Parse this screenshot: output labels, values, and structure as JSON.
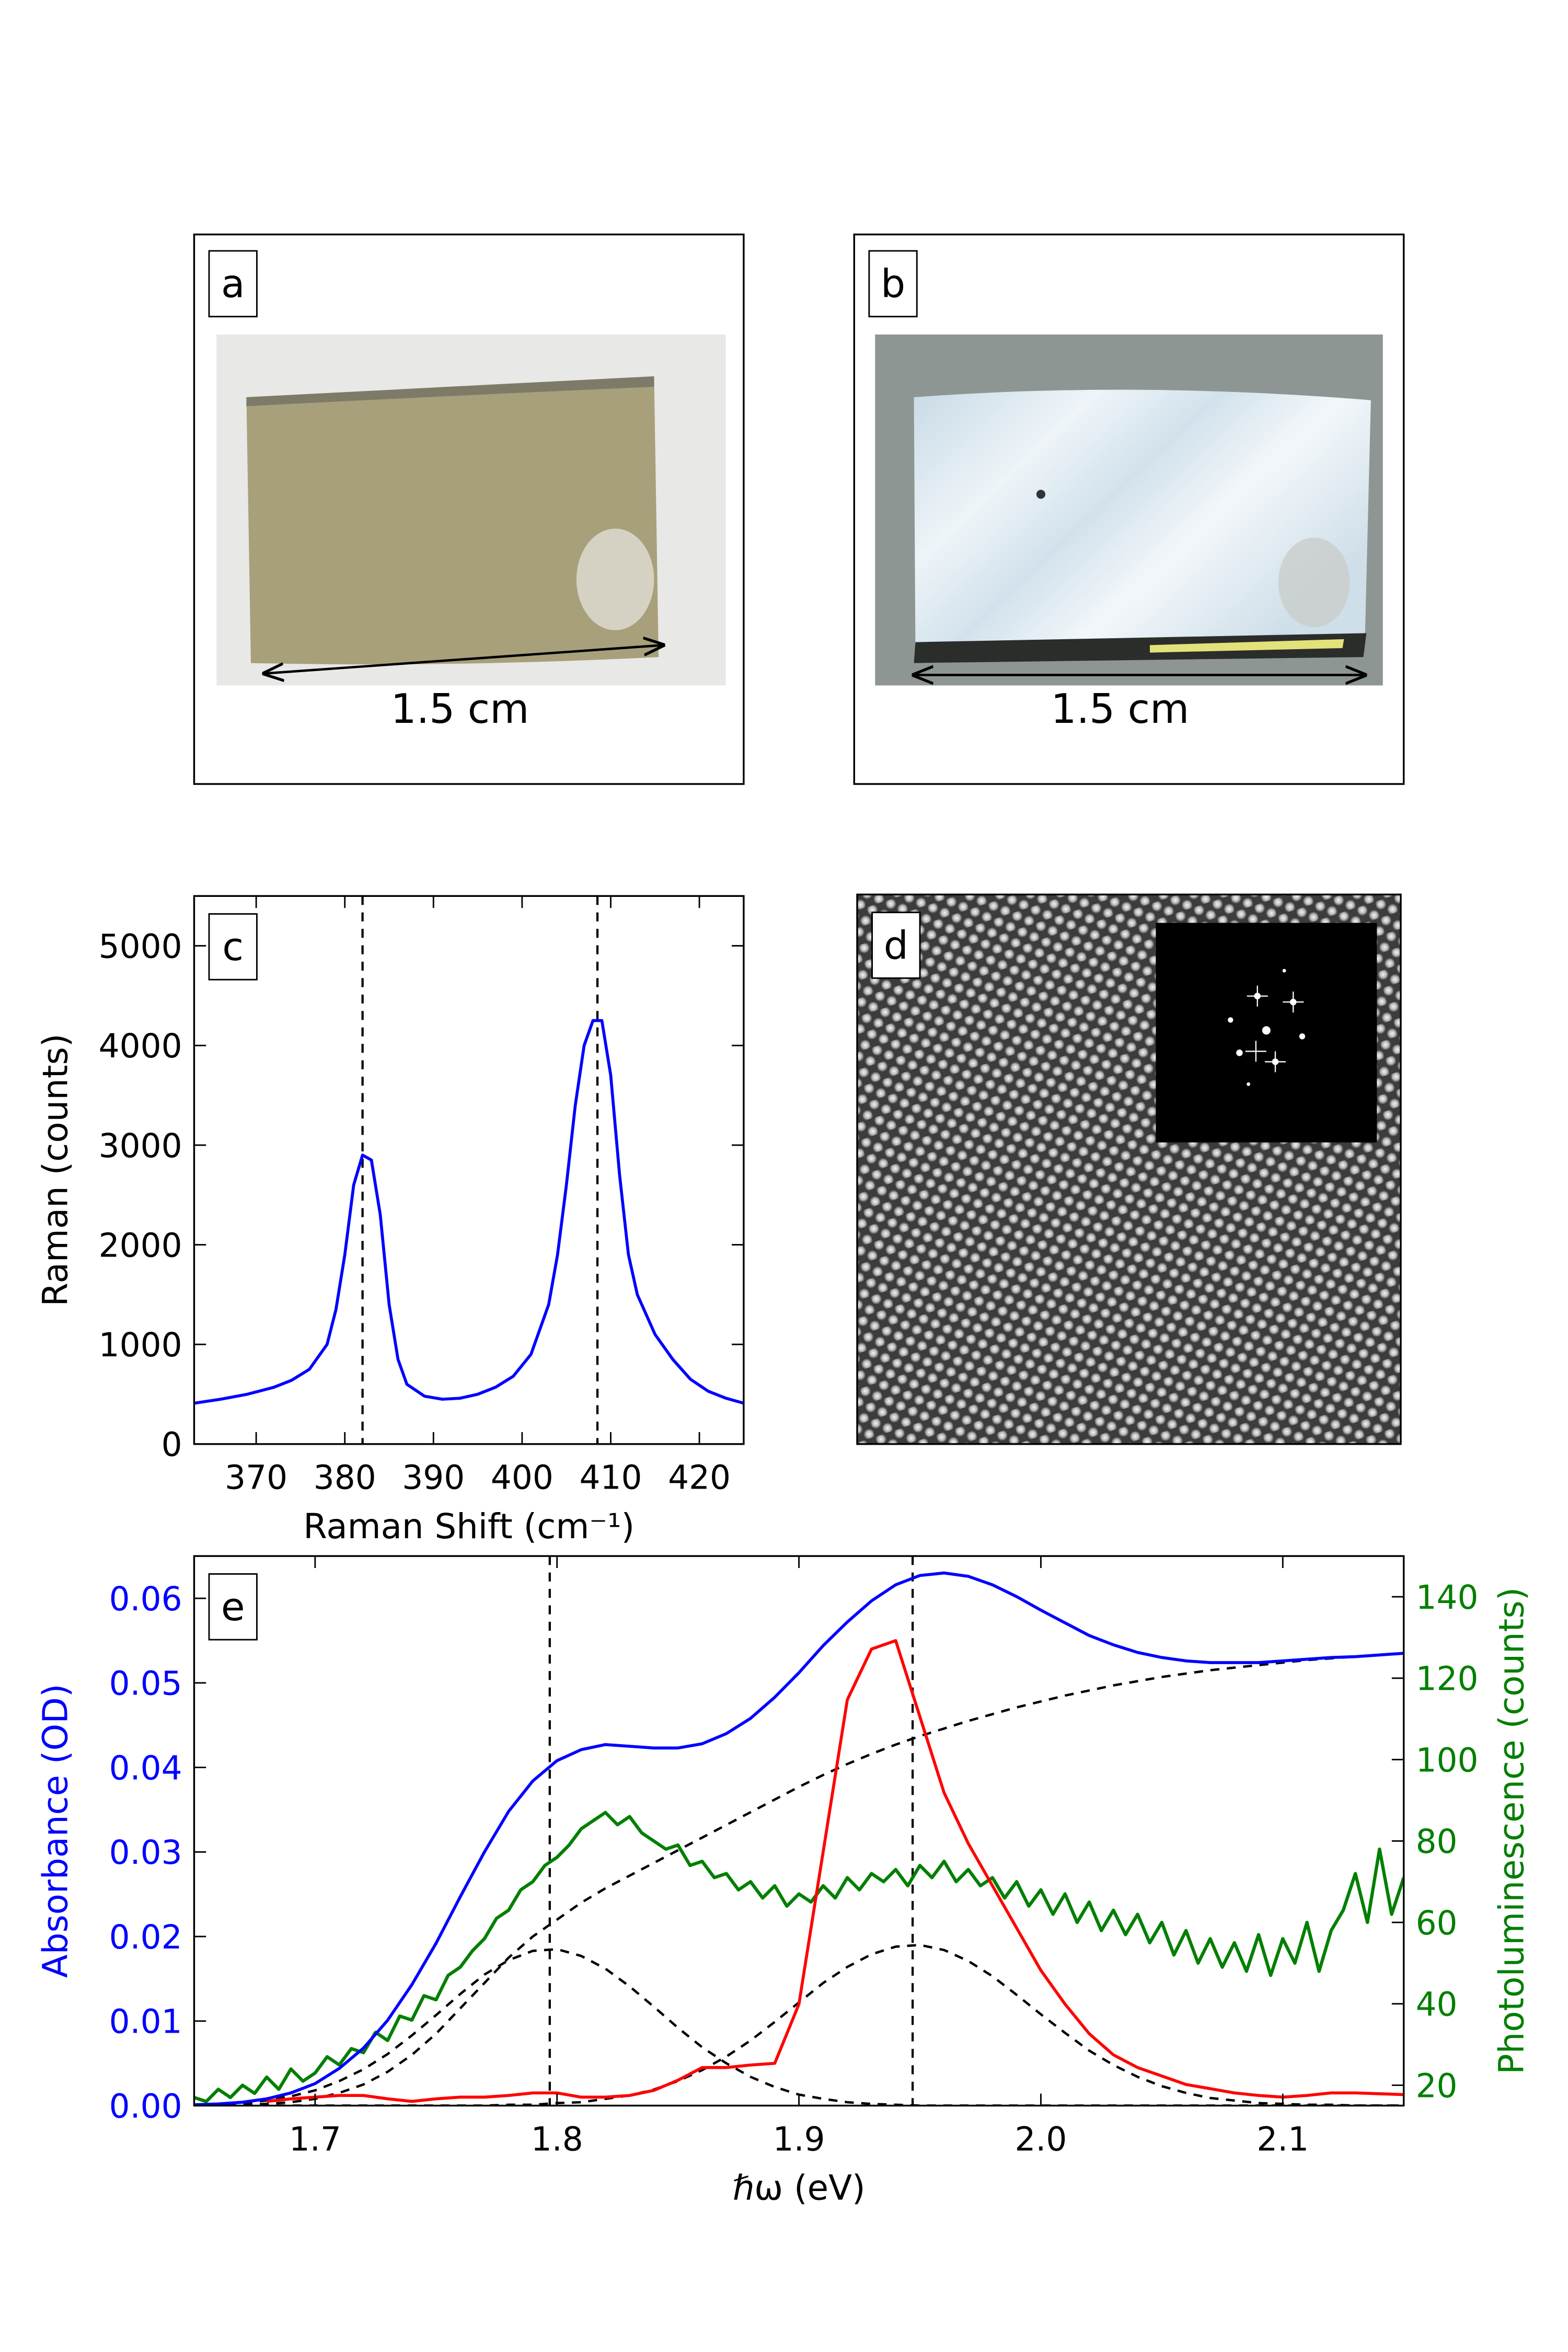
{
  "panels": {
    "a": {
      "label": "a",
      "caption": "1.5 cm"
    },
    "b": {
      "label": "b",
      "caption": "1.5 cm"
    },
    "d": {
      "label": "d"
    }
  },
  "chart_data": [
    {
      "type": "line",
      "panel_label": "c",
      "xlabel": "Raman Shift (cm⁻¹)",
      "ylabel": "Raman (counts)",
      "xlim": [
        363,
        425
      ],
      "ylim": [
        0,
        5500
      ],
      "xticks": [
        370,
        380,
        390,
        400,
        410,
        420
      ],
      "yticks": [
        0,
        1000,
        2000,
        3000,
        4000,
        5000
      ],
      "vlines": [
        382,
        408.5
      ],
      "x": [
        363,
        366,
        369,
        372,
        374,
        376,
        378,
        379,
        380,
        381,
        382,
        383,
        384,
        385,
        386,
        387,
        389,
        391,
        393,
        395,
        397,
        399,
        401,
        403,
        404,
        405,
        406,
        407,
        408,
        409,
        410,
        411,
        412,
        413,
        415,
        417,
        419,
        421,
        423,
        425
      ],
      "series": [
        {
          "color": "#0000ff",
          "values": [
            410,
            450,
            500,
            570,
            640,
            750,
            1000,
            1350,
            1900,
            2600,
            2900,
            2850,
            2300,
            1400,
            850,
            600,
            480,
            450,
            460,
            500,
            570,
            680,
            900,
            1400,
            1900,
            2600,
            3400,
            4000,
            4250,
            4250,
            3700,
            2700,
            1900,
            1500,
            1100,
            850,
            650,
            530,
            460,
            410
          ]
        }
      ]
    },
    {
      "type": "line",
      "panel_label": "e",
      "xlabel": "ℏω  (eV)",
      "ylabel": "Absorbance (OD)",
      "y2label": "Photoluminescence (counts)",
      "y_color": "#0000ff",
      "y2_color": "#007f00",
      "xlim": [
        1.65,
        2.15
      ],
      "ylim": [
        0,
        0.065
      ],
      "y2lim": [
        15,
        150
      ],
      "xticks": [
        1.7,
        1.8,
        1.9,
        {
          "value": 2,
          "label": "2.0"
        },
        2.1
      ],
      "yticks": [
        {
          "value": 0,
          "label": "0.00"
        },
        {
          "value": 0.01,
          "label": "0.01"
        },
        {
          "value": 0.02,
          "label": "0.02"
        },
        {
          "value": 0.03,
          "label": "0.03"
        },
        {
          "value": 0.04,
          "label": "0.04"
        },
        {
          "value": 0.05,
          "label": "0.05"
        },
        {
          "value": 0.06,
          "label": "0.06"
        }
      ],
      "y2ticks": [
        20,
        40,
        60,
        80,
        100,
        120,
        140
      ],
      "vlines": [
        1.797,
        1.947
      ],
      "x": [
        1.65,
        1.66,
        1.67,
        1.68,
        1.69,
        1.7,
        1.71,
        1.72,
        1.73,
        1.74,
        1.75,
        1.76,
        1.77,
        1.78,
        1.79,
        1.8,
        1.81,
        1.82,
        1.83,
        1.84,
        1.85,
        1.86,
        1.87,
        1.88,
        1.89,
        1.9,
        1.91,
        1.92,
        1.93,
        1.94,
        1.95,
        1.96,
        1.97,
        1.98,
        1.99,
        2.0,
        2.01,
        2.02,
        2.03,
        2.04,
        2.05,
        2.06,
        2.07,
        2.08,
        2.09,
        2.1,
        2.11,
        2.12,
        2.13,
        2.14,
        2.15
      ],
      "series": [
        {
          "color": "#007f00",
          "axis": "y2",
          "width": 2.2,
          "x": [
            1.65,
            1.655,
            1.66,
            1.665,
            1.67,
            1.675,
            1.68,
            1.685,
            1.69,
            1.695,
            1.7,
            1.705,
            1.71,
            1.715,
            1.72,
            1.725,
            1.73,
            1.735,
            1.74,
            1.745,
            1.75,
            1.755,
            1.76,
            1.765,
            1.77,
            1.775,
            1.78,
            1.785,
            1.79,
            1.795,
            1.8,
            1.805,
            1.81,
            1.815,
            1.82,
            1.825,
            1.83,
            1.835,
            1.84,
            1.845,
            1.85,
            1.855,
            1.86,
            1.865,
            1.87,
            1.875,
            1.88,
            1.885,
            1.89,
            1.895,
            1.9,
            1.905,
            1.91,
            1.915,
            1.92,
            1.925,
            1.93,
            1.935,
            1.94,
            1.945,
            1.95,
            1.955,
            1.96,
            1.965,
            1.97,
            1.975,
            1.98,
            1.985,
            1.99,
            1.995,
            2.0,
            2.005,
            2.01,
            2.015,
            2.02,
            2.025,
            2.03,
            2.035,
            2.04,
            2.045,
            2.05,
            2.055,
            2.06,
            2.065,
            2.07,
            2.075,
            2.08,
            2.085,
            2.09,
            2.095,
            2.1,
            2.105,
            2.11,
            2.115,
            2.12,
            2.125,
            2.13,
            2.135,
            2.14,
            2.145,
            2.15
          ],
          "values": [
            17,
            16,
            19,
            17,
            20,
            18,
            22,
            19,
            24,
            21,
            23,
            27,
            25,
            29,
            28,
            33,
            31,
            37,
            36,
            42,
            41,
            47,
            49,
            53,
            56,
            61,
            63,
            68,
            70,
            74,
            76,
            79,
            83,
            85,
            87,
            84,
            86,
            82,
            80,
            78,
            79,
            74,
            75,
            71,
            72,
            68,
            70,
            66,
            69,
            64,
            67,
            65,
            69,
            66,
            71,
            68,
            72,
            70,
            73,
            69,
            74,
            71,
            75,
            70,
            73,
            69,
            71,
            66,
            70,
            64,
            68,
            62,
            67,
            60,
            65,
            58,
            63,
            57,
            62,
            55,
            60,
            52,
            58,
            50,
            56,
            49,
            55,
            48,
            57,
            47,
            56,
            50,
            60,
            48,
            58,
            63,
            72,
            60,
            78,
            62,
            71
          ]
        },
        {
          "color": "#000000",
          "dashed": true,
          "width": 1.6,
          "values": [
            0,
            0,
            0,
            0,
            0,
            0,
            0,
            0,
            0,
            0,
            0,
            0,
            0,
            0.0001,
            0.0001,
            0.0003,
            0.0004,
            0.0008,
            0.0012,
            0.0019,
            0.0029,
            0.0042,
            0.0058,
            0.0077,
            0.0099,
            0.0122,
            0.0145,
            0.0164,
            0.0179,
            0.0188,
            0.019,
            0.0184,
            0.0171,
            0.0153,
            0.0131,
            0.0108,
            0.0086,
            0.0065,
            0.0048,
            0.0034,
            0.0023,
            0.0015,
            0.0009,
            0.0006,
            0.0003,
            0.0002,
            0.0001,
            0.0001,
            0,
            0,
            0
          ]
        },
        {
          "color": "#000000",
          "dashed": true,
          "width": 1.6,
          "values": [
            0.0001,
            0.0002,
            0.0003,
            0.0006,
            0.0011,
            0.0018,
            0.0029,
            0.0043,
            0.0061,
            0.0083,
            0.0107,
            0.0132,
            0.0155,
            0.0172,
            0.0183,
            0.0185,
            0.0177,
            0.0162,
            0.0141,
            0.0117,
            0.0092,
            0.0069,
            0.005,
            0.0034,
            0.0022,
            0.0013,
            0.0008,
            0.0004,
            0.0002,
            0.0001,
            0,
            0,
            0,
            0,
            0,
            0,
            0,
            0,
            0,
            0,
            0,
            0,
            0,
            0,
            0,
            0,
            0,
            0,
            0,
            0,
            0
          ]
        },
        {
          "color": "#000000",
          "dashed": true,
          "width": 1.6,
          "values": [
            0,
            0,
            0.0001,
            0.0002,
            0.0004,
            0.0008,
            0.0015,
            0.0025,
            0.004,
            0.006,
            0.0085,
            0.0115,
            0.0145,
            0.0175,
            0.02,
            0.022,
            0.024,
            0.0257,
            0.0272,
            0.0287,
            0.0302,
            0.0317,
            0.0332,
            0.0347,
            0.0362,
            0.0377,
            0.0391,
            0.0404,
            0.0416,
            0.0427,
            0.0437,
            0.0446,
            0.0455,
            0.0463,
            0.0471,
            0.0478,
            0.0485,
            0.0491,
            0.0497,
            0.0502,
            0.0507,
            0.0511,
            0.0515,
            0.0518,
            0.0521,
            0.0524,
            0.0527,
            0.0529,
            0.0531,
            0.0533,
            0.0535
          ]
        },
        {
          "color": "#ff0000",
          "width": 2,
          "values": [
            null,
            null,
            null,
            0.0005,
            0.0008,
            0.001,
            0.0012,
            0.0012,
            0.0008,
            0.0005,
            0.0008,
            0.001,
            0.001,
            0.0012,
            0.0015,
            0.0015,
            0.001,
            0.001,
            0.0012,
            0.0018,
            0.003,
            0.0045,
            0.0045,
            0.0048,
            0.005,
            0.012,
            0.03,
            0.048,
            0.054,
            0.055,
            0.046,
            0.037,
            0.031,
            0.026,
            0.021,
            0.016,
            0.012,
            0.0085,
            0.006,
            0.0045,
            0.0035,
            0.0025,
            0.002,
            0.0015,
            0.0012,
            0.001,
            0.0012,
            0.0015,
            0.0015,
            0.0014,
            0.0013
          ]
        },
        {
          "color": "#0000ff",
          "width": 2,
          "values": [
            0.0001,
            0.0002,
            0.0004,
            0.0008,
            0.0015,
            0.0026,
            0.0044,
            0.0068,
            0.0101,
            0.0143,
            0.0192,
            0.0247,
            0.03,
            0.0348,
            0.0384,
            0.0408,
            0.0421,
            0.0427,
            0.0425,
            0.0423,
            0.0423,
            0.0428,
            0.044,
            0.0458,
            0.0483,
            0.0512,
            0.0544,
            0.0572,
            0.0597,
            0.0616,
            0.0627,
            0.063,
            0.0626,
            0.0616,
            0.0602,
            0.0586,
            0.0571,
            0.0556,
            0.0545,
            0.0536,
            0.053,
            0.0526,
            0.0524,
            0.0524,
            0.0524,
            0.0526,
            0.0528,
            0.053,
            0.0531,
            0.0533,
            0.0535
          ]
        }
      ]
    }
  ]
}
